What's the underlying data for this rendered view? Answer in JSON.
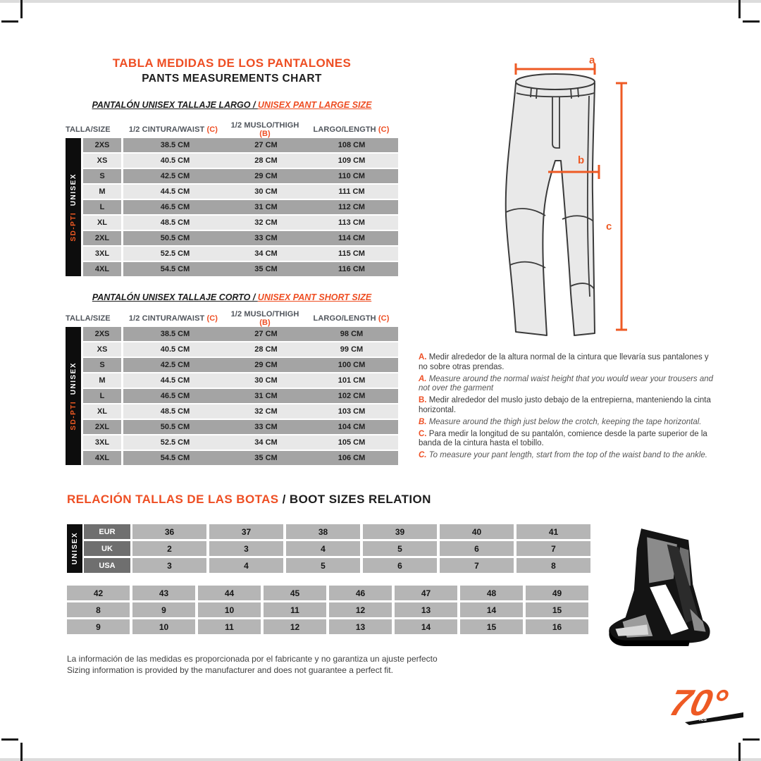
{
  "header": {
    "title_es": "TABLA MEDIDAS DE LOS PANTALONES",
    "title_en": "PANTS MEASUREMENTS CHART"
  },
  "size_chart": {
    "col_headers": {
      "size": "TALLA/SIZE",
      "waist": "1/2 CINTURA/WAIST",
      "waist_ref": "(C)",
      "thigh": "1/2 MUSLO/THIGH",
      "thigh_ref": "(B)",
      "length": "LARGO/LENGTH",
      "length_ref": "(C)"
    },
    "side_label_model": "SD-PTI",
    "side_label_gender": "UNISEX",
    "large": {
      "subtitle_es": "PANTALÓN UNISEX TALLAJE LARGO / ",
      "subtitle_en": "UNISEX PANT LARGE SIZE",
      "rows": [
        [
          "2XS",
          "38.5 CM",
          "27 CM",
          "108 CM"
        ],
        [
          "XS",
          "40.5 CM",
          "28 CM",
          "109 CM"
        ],
        [
          "S",
          "42.5 CM",
          "29 CM",
          "110 CM"
        ],
        [
          "M",
          "44.5 CM",
          "30 CM",
          "111 CM"
        ],
        [
          "L",
          "46.5 CM",
          "31 CM",
          "112 CM"
        ],
        [
          "XL",
          "48.5 CM",
          "32 CM",
          "113 CM"
        ],
        [
          "2XL",
          "50.5 CM",
          "33 CM",
          "114 CM"
        ],
        [
          "3XL",
          "52.5 CM",
          "34 CM",
          "115 CM"
        ],
        [
          "4XL",
          "54.5 CM",
          "35 CM",
          "116 CM"
        ]
      ]
    },
    "short": {
      "subtitle_es": "PANTALÓN UNISEX TALLAJE CORTO / ",
      "subtitle_en": "UNISEX PANT SHORT SIZE",
      "rows": [
        [
          "2XS",
          "38.5 CM",
          "27 CM",
          "98 CM"
        ],
        [
          "XS",
          "40.5 CM",
          "28 CM",
          "99 CM"
        ],
        [
          "S",
          "42.5 CM",
          "29 CM",
          "100 CM"
        ],
        [
          "M",
          "44.5 CM",
          "30 CM",
          "101 CM"
        ],
        [
          "L",
          "46.5 CM",
          "31 CM",
          "102 CM"
        ],
        [
          "XL",
          "48.5 CM",
          "32 CM",
          "103 CM"
        ],
        [
          "2XL",
          "50.5 CM",
          "33 CM",
          "104 CM"
        ],
        [
          "3XL",
          "52.5 CM",
          "34 CM",
          "105 CM"
        ],
        [
          "4XL",
          "54.5 CM",
          "35 CM",
          "106 CM"
        ]
      ]
    }
  },
  "diagram": {
    "dim_a": "a",
    "dim_b": "b",
    "dim_c": "c"
  },
  "notes": [
    {
      "ref": "A.",
      "lang": "es",
      "text": "Medir alrededor de la altura normal de la cintura que llevaría sus pantalones y no sobre otras prendas."
    },
    {
      "ref": "A.",
      "lang": "en",
      "text": "Measure around the normal waist height that you would wear your trousers and not over the garment"
    },
    {
      "ref": "B.",
      "lang": "es",
      "text": "Medir alrededor del muslo justo debajo de la entrepierna, manteniendo la cinta horizontal."
    },
    {
      "ref": "B.",
      "lang": "en",
      "text": "Measure around the thigh just below the crotch, keeping the tape horizontal."
    },
    {
      "ref": "C.",
      "lang": "es",
      "text": "Para medir la longitud de su pantalón, comience desde la parte superior de la banda de la cintura hasta el tobillo."
    },
    {
      "ref": "C.",
      "lang": "en",
      "text": "To measure your pant length, start from the top of the waist band to the ankle."
    }
  ],
  "boots": {
    "title_es": "RELACIÓN TALLAS DE LAS BOTAS ",
    "title_en": "/ BOOT SIZES RELATION",
    "side_label": "UNISEX",
    "standards_table": [
      {
        "label": "EUR",
        "values": [
          "36",
          "37",
          "38",
          "39",
          "40",
          "41"
        ]
      },
      {
        "label": "UK",
        "values": [
          "2",
          "3",
          "4",
          "5",
          "6",
          "7"
        ]
      },
      {
        "label": "USA",
        "values": [
          "3",
          "4",
          "5",
          "6",
          "7",
          "8"
        ]
      }
    ],
    "extended_table": [
      [
        "42",
        "43",
        "44",
        "45",
        "46",
        "47",
        "48",
        "49"
      ],
      [
        "8",
        "9",
        "10",
        "11",
        "12",
        "13",
        "14",
        "15"
      ],
      [
        "9",
        "10",
        "11",
        "12",
        "13",
        "14",
        "15",
        "16"
      ]
    ]
  },
  "footer": {
    "line_es": "La información de las medidas es proporcionada por el fabricante y no garantiza un ajuste perfecto",
    "line_en": "Sizing information is provided by the manufacturer and does not guarantee a perfect fit."
  },
  "logo": {
    "text": "70°",
    "sub": "ics"
  }
}
